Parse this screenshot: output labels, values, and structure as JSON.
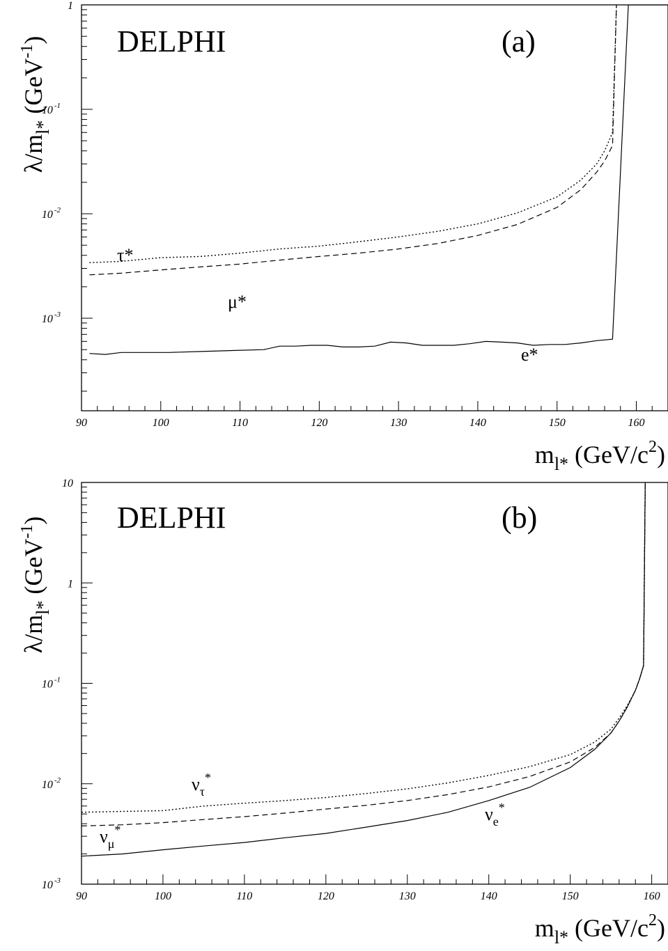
{
  "chart_data": [
    {
      "type": "line",
      "experiment_label": "DELPHI",
      "panel_label": "(a)",
      "ylabel": "λ/m_{l*} (GeV^{-1})",
      "xlabel": "m_{l*} (GeV/c^{2})",
      "xlim": [
        90,
        164
      ],
      "ylim": [
        0.00013,
        1
      ],
      "yscale": "log",
      "x_ticks": [
        90,
        100,
        110,
        120,
        130,
        140,
        150,
        160
      ],
      "y_ticks": [
        {
          "value": 0.001,
          "base": "10",
          "exp": "-3"
        },
        {
          "value": 0.01,
          "base": "10",
          "exp": "-2"
        },
        {
          "value": 0.1,
          "base": "10",
          "exp": "-1"
        },
        {
          "value": 1,
          "base": "1",
          "exp": ""
        }
      ],
      "series": [
        {
          "name": "e*",
          "style": "solid",
          "x": [
            91,
            93,
            95,
            97,
            101,
            105,
            109,
            113,
            115,
            117,
            119,
            121,
            123,
            125,
            127,
            129,
            131,
            133,
            135,
            137,
            139,
            141,
            143,
            145,
            147,
            149,
            151,
            153,
            155,
            157,
            159,
            164
          ],
          "y": [
            0.00046,
            0.00045,
            0.00047,
            0.00047,
            0.00047,
            0.00048,
            0.00049,
            0.0005,
            0.00054,
            0.00054,
            0.00055,
            0.00055,
            0.00053,
            0.00053,
            0.00054,
            0.00059,
            0.00058,
            0.00055,
            0.00055,
            0.00055,
            0.00057,
            0.0006,
            0.00059,
            0.00058,
            0.00055,
            0.00056,
            0.00056,
            0.00058,
            0.00061,
            0.00063,
            1,
            1
          ]
        },
        {
          "name": "μ*",
          "style": "dashed",
          "x": [
            91,
            95,
            100,
            105,
            110,
            115,
            120,
            125,
            130,
            135,
            140,
            145,
            150,
            153,
            155,
            156,
            157,
            157.5
          ],
          "y": [
            0.0026,
            0.0027,
            0.0029,
            0.0031,
            0.0033,
            0.0036,
            0.0039,
            0.0042,
            0.0046,
            0.0052,
            0.0062,
            0.0079,
            0.0115,
            0.017,
            0.025,
            0.032,
            0.045,
            1
          ]
        },
        {
          "name": "τ*",
          "style": "dotted",
          "x": [
            91,
            95,
            100,
            105,
            110,
            115,
            120,
            125,
            130,
            135,
            140,
            145,
            150,
            153,
            155,
            156,
            157,
            157.5
          ],
          "y": [
            0.0034,
            0.0035,
            0.0038,
            0.0039,
            0.0042,
            0.0046,
            0.0049,
            0.0054,
            0.006,
            0.0068,
            0.008,
            0.0102,
            0.0145,
            0.021,
            0.03,
            0.04,
            0.06,
            1
          ]
        }
      ]
    },
    {
      "type": "line",
      "experiment_label": "DELPHI",
      "panel_label": "(b)",
      "ylabel": "λ/m_{l*} (GeV^{-1})",
      "xlabel": "m_{l*} (GeV/c^{2})",
      "xlim": [
        90,
        162
      ],
      "ylim": [
        0.001,
        10
      ],
      "yscale": "log",
      "x_ticks": [
        90,
        100,
        110,
        120,
        130,
        140,
        150,
        160
      ],
      "y_ticks": [
        {
          "value": 0.001,
          "base": "10",
          "exp": "-3"
        },
        {
          "value": 0.01,
          "base": "10",
          "exp": "-2"
        },
        {
          "value": 0.1,
          "base": "10",
          "exp": "-1"
        },
        {
          "value": 1,
          "base": "1",
          "exp": ""
        },
        {
          "value": 10,
          "base": "10",
          "exp": ""
        }
      ],
      "series": [
        {
          "name": "ν_e*",
          "style": "solid",
          "x": [
            90,
            95,
            100,
            105,
            110,
            115,
            120,
            125,
            130,
            135,
            140,
            145,
            150,
            153,
            155,
            156,
            157,
            158,
            158.5,
            159,
            159.2
          ],
          "y": [
            0.0019,
            0.002,
            0.0022,
            0.0024,
            0.0026,
            0.0029,
            0.0032,
            0.0037,
            0.0043,
            0.0052,
            0.0068,
            0.0092,
            0.0145,
            0.022,
            0.032,
            0.042,
            0.058,
            0.085,
            0.11,
            0.15,
            10
          ]
        },
        {
          "name": "ν_μ*",
          "style": "dashed",
          "x": [
            90,
            95,
            100,
            105,
            110,
            115,
            120,
            125,
            130,
            135,
            140,
            145,
            150,
            153,
            155,
            156,
            157,
            158,
            158.5,
            159,
            159.2
          ],
          "y": [
            0.0038,
            0.0039,
            0.0041,
            0.0044,
            0.0047,
            0.0051,
            0.0056,
            0.0061,
            0.0068,
            0.0078,
            0.0093,
            0.0118,
            0.0165,
            0.023,
            0.032,
            0.042,
            0.058,
            0.085,
            0.11,
            0.15,
            10
          ]
        },
        {
          "name": "ν_τ*",
          "style": "dotted",
          "x": [
            90,
            95,
            100,
            105,
            110,
            115,
            120,
            125,
            130,
            135,
            140,
            145,
            150,
            153,
            155,
            156,
            157,
            158,
            158.5,
            159,
            159.2
          ],
          "y": [
            0.0052,
            0.0053,
            0.0054,
            0.006,
            0.0064,
            0.0068,
            0.0073,
            0.008,
            0.0089,
            0.0102,
            0.0121,
            0.0148,
            0.0195,
            0.026,
            0.035,
            0.045,
            0.06,
            0.085,
            0.11,
            0.15,
            10
          ]
        }
      ]
    }
  ]
}
